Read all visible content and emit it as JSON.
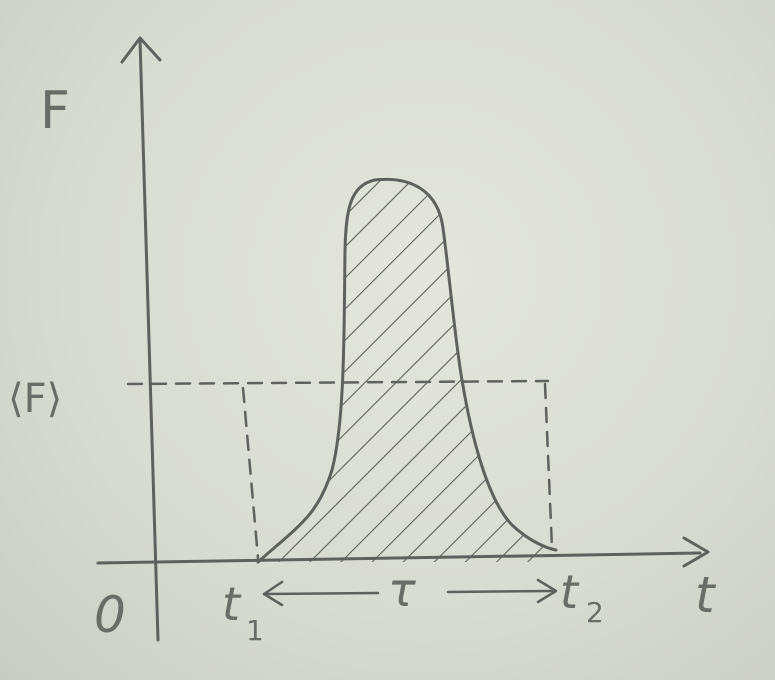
{
  "axes": {
    "y_label": "F",
    "x_label": "t",
    "origin_label": "0"
  },
  "labels": {
    "mean_force": "⟨F⟩",
    "t1": "t",
    "t1_sub": "1",
    "t2": "t",
    "t2_sub": "2",
    "duration": "τ"
  },
  "colors": {
    "pencil": "#5f615e",
    "paper": "#d9dcd3"
  },
  "icons": {
    "y_axis_arrow": "arrow-up-icon",
    "x_axis_arrow": "arrow-right-icon",
    "interval_arrows": "double-arrow-icon"
  }
}
